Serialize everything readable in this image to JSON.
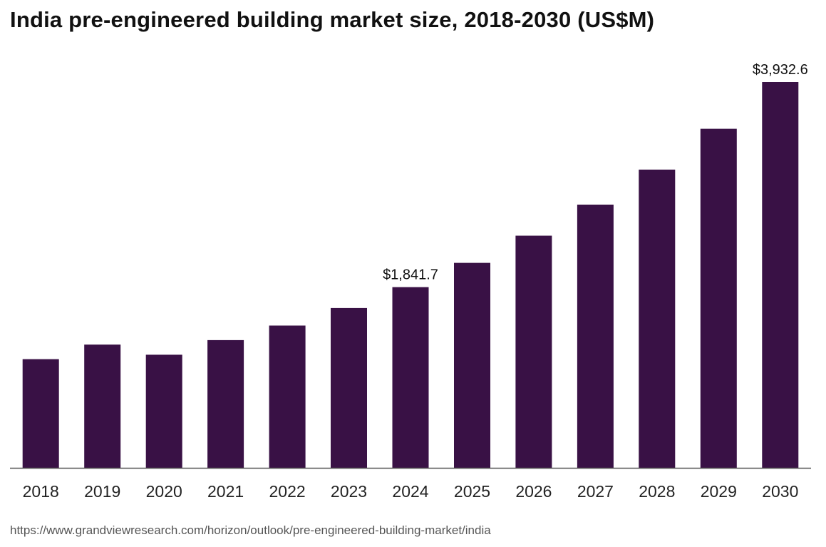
{
  "colors": {
    "bar": "#391145",
    "axis": "#555555",
    "background": "#ffffff"
  },
  "footer": {
    "source_url": "https://www.grandviewresearch.com/horizon/outlook/pre-engineered-building-market/india"
  },
  "chart_data": {
    "type": "bar",
    "title": "India pre-engineered building market size, 2018-2030 (US$M)",
    "xlabel": "",
    "ylabel": "",
    "ylim": [
      0,
      3932.6
    ],
    "grid": false,
    "categories": [
      "2018",
      "2019",
      "2020",
      "2021",
      "2022",
      "2023",
      "2024",
      "2025",
      "2026",
      "2027",
      "2028",
      "2029",
      "2030"
    ],
    "values": [
      1108,
      1256,
      1153,
      1302,
      1450,
      1629,
      1841.7,
      2089,
      2366,
      2683,
      3040,
      3456,
      3932.6
    ],
    "data_labels": [
      {
        "category": "2024",
        "text": "$1,841.7"
      },
      {
        "category": "2030",
        "text": "$3,932.6"
      }
    ]
  }
}
